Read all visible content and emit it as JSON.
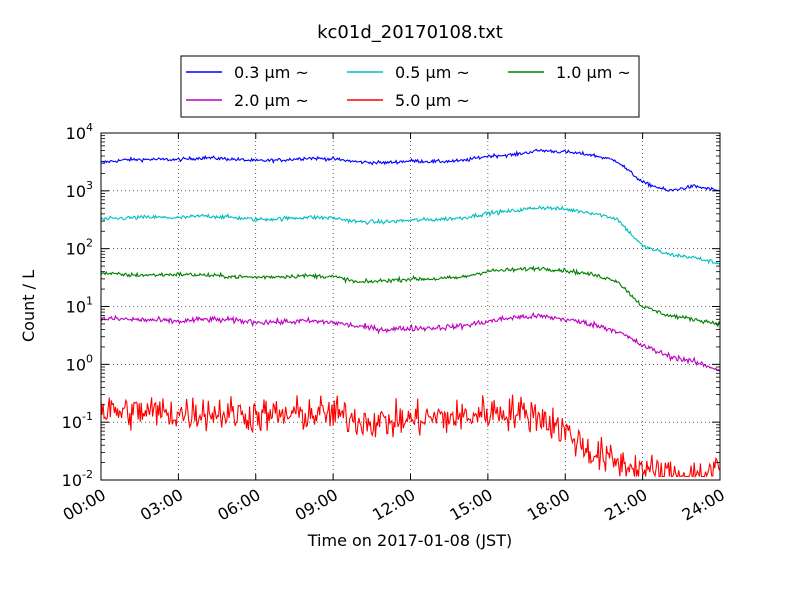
{
  "chart_data": {
    "type": "line",
    "title": "kc01d_20170108.txt",
    "xlabel": "Time on 2017-01-08 (JST)",
    "ylabel": "Count / L",
    "x_unit": "hour",
    "xlim": [
      0,
      24
    ],
    "x_ticks": [
      0,
      3,
      6,
      9,
      12,
      15,
      18,
      21,
      24
    ],
    "x_tick_labels": [
      "00:00",
      "03:00",
      "06:00",
      "09:00",
      "12:00",
      "15:00",
      "18:00",
      "21:00",
      "24:00"
    ],
    "y_scale": "log",
    "ylim": [
      0.01,
      10000
    ],
    "y_ticks": [
      0.01,
      0.1,
      1,
      10,
      100,
      1000,
      10000
    ],
    "y_tick_labels": [
      {
        "base": "10",
        "exp": "-2"
      },
      {
        "base": "10",
        "exp": "-1"
      },
      {
        "base": "10",
        "exp": "0"
      },
      {
        "base": "10",
        "exp": "1"
      },
      {
        "base": "10",
        "exp": "2"
      },
      {
        "base": "10",
        "exp": "3"
      },
      {
        "base": "10",
        "exp": "4"
      }
    ],
    "grid": true,
    "legend_position": "top",
    "x": [
      0,
      1,
      2,
      3,
      4,
      5,
      6,
      7,
      8,
      9,
      10,
      11,
      12,
      13,
      14,
      15,
      16,
      17,
      18,
      19,
      20,
      21,
      22,
      23,
      24
    ],
    "series": [
      {
        "name": "0.3 μm ~",
        "color": "#0000ff",
        "noise": 0.03,
        "values": [
          3100,
          3450,
          3500,
          3450,
          3750,
          3550,
          3300,
          3400,
          3700,
          3550,
          3150,
          3050,
          3300,
          3200,
          3300,
          4000,
          4200,
          5000,
          4700,
          4200,
          3300,
          1400,
          1000,
          1200,
          1000
        ]
      },
      {
        "name": "0.5 μm ~",
        "color": "#00bfbf",
        "noise": 0.035,
        "values": [
          320,
          340,
          350,
          340,
          370,
          350,
          320,
          330,
          350,
          340,
          290,
          290,
          310,
          320,
          340,
          410,
          450,
          520,
          480,
          420,
          330,
          110,
          80,
          70,
          55
        ]
      },
      {
        "name": "1.0 μm ~",
        "color": "#008000",
        "noise": 0.035,
        "values": [
          38,
          35,
          35,
          36,
          35,
          33,
          32,
          33,
          34,
          33,
          26,
          28,
          30,
          30,
          32,
          41,
          43,
          46,
          42,
          36,
          28,
          10,
          7,
          6,
          5
        ]
      },
      {
        "name": "2.0 μm ~",
        "color": "#bf00bf",
        "noise": 0.05,
        "values": [
          6.2,
          6.0,
          5.8,
          5.5,
          6.0,
          5.8,
          5.4,
          5.4,
          5.6,
          5.3,
          4.5,
          4.0,
          4.2,
          4.3,
          4.6,
          5.5,
          6.5,
          6.8,
          6.0,
          5.0,
          3.8,
          2.1,
          1.4,
          1.1,
          0.8
        ]
      },
      {
        "name": "5.0 μm ~",
        "color": "#ff0000",
        "noise": 0.3,
        "values": [
          0.16,
          0.15,
          0.15,
          0.14,
          0.15,
          0.14,
          0.13,
          0.13,
          0.14,
          0.14,
          0.11,
          0.1,
          0.11,
          0.12,
          0.12,
          0.15,
          0.15,
          0.13,
          0.07,
          0.03,
          0.02,
          0.015,
          0.012,
          0.012,
          0.015
        ]
      }
    ]
  }
}
